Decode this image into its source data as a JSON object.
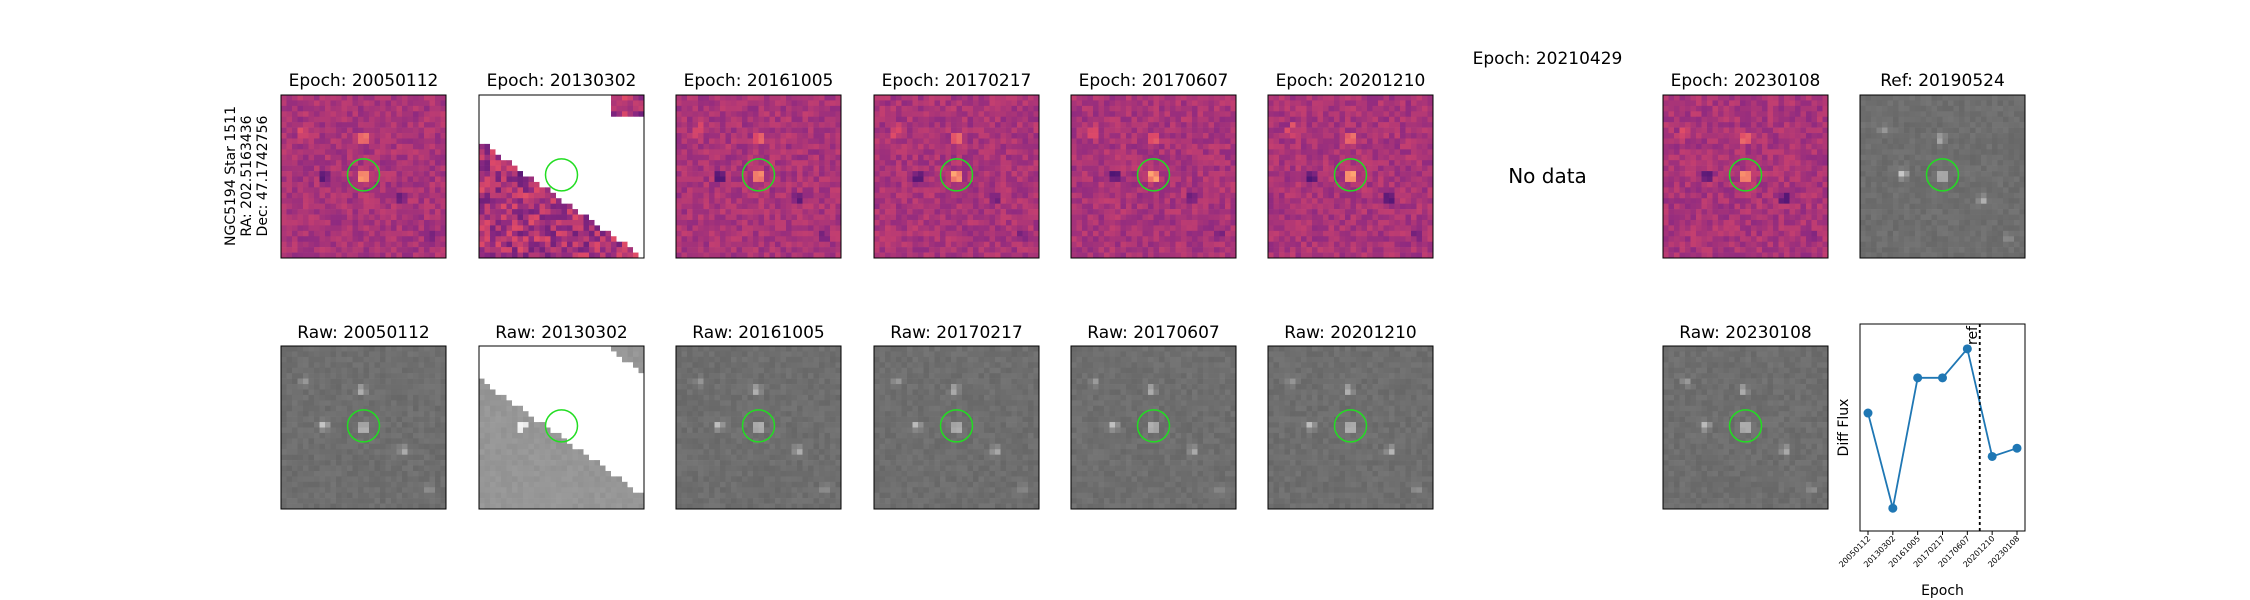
{
  "figure": {
    "side_label": [
      "NGC5194 Star 1511",
      "RA: 202.5163436",
      "Dec: 47.1742756"
    ],
    "panels": [
      {
        "title": "Epoch: 20050112",
        "kind": "diff"
      },
      {
        "title": "Epoch: 20130302",
        "kind": "diff",
        "masked": true
      },
      {
        "title": "Epoch: 20161005",
        "kind": "diff"
      },
      {
        "title": "Epoch: 20170217",
        "kind": "diff"
      },
      {
        "title": "Epoch: 20170607",
        "kind": "diff"
      },
      {
        "title": "Epoch: 20201210",
        "kind": "diff"
      },
      {
        "title": "Epoch: 20210429",
        "kind": "none",
        "text": "No data"
      },
      {
        "title": "Epoch: 20230108",
        "kind": "diff"
      },
      {
        "title": "Ref: 20190524",
        "kind": "raw"
      }
    ],
    "raw_panels": [
      {
        "title": "Raw: 20050112"
      },
      {
        "title": "Raw: 20130302",
        "masked": true
      },
      {
        "title": "Raw: 20161005"
      },
      {
        "title": "Raw: 20170217"
      },
      {
        "title": "Raw: 20170607"
      },
      {
        "title": "Raw: 20201210"
      },
      {
        "title": "Raw: 20230108"
      }
    ]
  },
  "chart_data": {
    "type": "line",
    "x_label": "Epoch",
    "y_label": "Diff Flux",
    "categories": [
      "20050112",
      "20130302",
      "20161005",
      "20170217",
      "20170607",
      "20201210",
      "20230108"
    ],
    "series": [
      {
        "name": "Diff Flux",
        "color": "#1f77b4",
        "values": [
          0.57,
          0.11,
          0.74,
          0.74,
          0.88,
          0.36,
          0.4
        ]
      }
    ],
    "ylim": [
      0,
      1
    ],
    "ref_line": {
      "x": 4.5,
      "label": "ref"
    }
  }
}
